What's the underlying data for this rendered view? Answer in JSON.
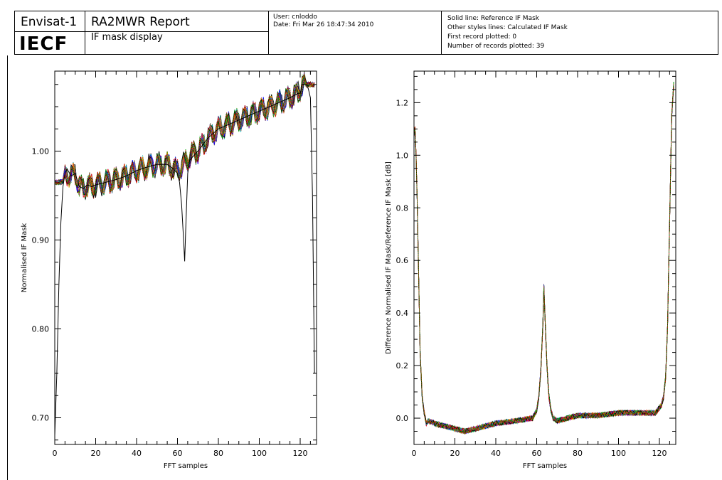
{
  "header": {
    "mission": "Envisat-1",
    "facility": "IECF",
    "report_title": "RA2MWR Report",
    "report_subtitle": "IF mask display",
    "user_line": "User: cnloddo",
    "date_line": "Date: Fri Mar 26 18:47:34 2010",
    "legend_lines": [
      "Solid line: Reference IF Mask",
      "Other styles lines: Calculated IF Mask",
      "First record plotted: 0",
      "Number of records plotted: 39"
    ]
  },
  "chart_data": [
    {
      "type": "line",
      "xlabel": "FFT samples",
      "ylabel": "Normalised IF Mask",
      "xlim": [
        0,
        128
      ],
      "ylim": [
        0.67,
        1.09
      ],
      "xticks": [
        0,
        20,
        40,
        60,
        80,
        100,
        120
      ],
      "yticks": [
        0.7,
        0.8,
        0.9,
        1.0
      ],
      "ytick_labels": [
        "0.70",
        "0.80",
        "0.90",
        "1.00"
      ],
      "reference_series": {
        "x": [
          0,
          1,
          2,
          3,
          4,
          5,
          6,
          8,
          10,
          12,
          14,
          16,
          18,
          20,
          25,
          30,
          35,
          40,
          45,
          50,
          55,
          58,
          60,
          61,
          62,
          63,
          63.5,
          64,
          65,
          66,
          68,
          70,
          75,
          80,
          85,
          90,
          95,
          100,
          105,
          110,
          115,
          119,
          120,
          121,
          122,
          123,
          124,
          125,
          126,
          127
        ],
        "y": [
          0.68,
          0.75,
          0.85,
          0.92,
          0.96,
          0.975,
          0.98,
          0.972,
          0.975,
          0.96,
          0.958,
          0.962,
          0.96,
          0.962,
          0.965,
          0.968,
          0.972,
          0.978,
          0.982,
          0.985,
          0.985,
          0.98,
          0.975,
          0.965,
          0.94,
          0.9,
          0.876,
          0.91,
          0.975,
          0.99,
          0.995,
          1.0,
          1.015,
          1.025,
          1.03,
          1.035,
          1.04,
          1.045,
          1.05,
          1.055,
          1.06,
          1.065,
          1.065,
          1.075,
          1.075,
          1.075,
          1.07,
          1.06,
          0.95,
          0.75
        ]
      },
      "calculated_series": {
        "count": 39,
        "x_start": 0,
        "x_end": 127,
        "x_step": 1,
        "y_base": [
          0.965,
          0.965,
          0.965,
          0.965,
          0.966,
          0.97,
          0.975,
          0.972,
          0.975,
          0.96,
          0.958,
          0.962,
          0.96,
          0.962,
          0.965,
          0.968,
          0.972,
          0.978,
          0.982,
          0.985,
          0.985,
          0.98,
          0.978,
          0.985,
          0.99,
          0.995,
          1.0,
          1.015,
          1.025,
          1.03,
          1.035,
          1.04,
          1.045,
          1.05,
          1.055,
          1.06,
          1.065,
          1.075,
          1.075
        ],
        "y_base_x": [
          0,
          1,
          2,
          3,
          4,
          5,
          6,
          8,
          10,
          12,
          14,
          16,
          18,
          20,
          25,
          30,
          35,
          40,
          45,
          50,
          55,
          58,
          60,
          63,
          65,
          66,
          70,
          75,
          80,
          85,
          90,
          95,
          100,
          105,
          110,
          115,
          119,
          121,
          127
        ],
        "ripple_amplitude": 0.012,
        "ripple_period": 4.2,
        "spread": 0.006
      }
    },
    {
      "type": "line",
      "xlabel": "FFT samples",
      "ylabel": "Difference Normalised IF Mask/Reference IF Mask [dB]",
      "xlim": [
        0,
        128
      ],
      "ylim": [
        -0.1,
        1.32
      ],
      "xticks": [
        0,
        20,
        40,
        60,
        80,
        100,
        120
      ],
      "yticks": [
        0.0,
        0.2,
        0.4,
        0.6,
        0.8,
        1.0,
        1.2
      ],
      "ytick_labels": [
        "0.0",
        "0.2",
        "0.4",
        "0.6",
        "0.8",
        "1.0",
        "1.2"
      ],
      "calculated_series": {
        "count": 39,
        "x": [
          0,
          0.5,
          1,
          1.5,
          2,
          3,
          4,
          5,
          6,
          7,
          10,
          15,
          20,
          25,
          30,
          40,
          50,
          58,
          60,
          61,
          62,
          63,
          63.5,
          64,
          65,
          66,
          67,
          68,
          70,
          80,
          90,
          100,
          110,
          115,
          118,
          119,
          120,
          121,
          122,
          123,
          124,
          125,
          126,
          127
        ],
        "y": [
          1.08,
          1.1,
          1.0,
          0.85,
          0.65,
          0.25,
          0.08,
          0.02,
          -0.02,
          -0.01,
          -0.02,
          -0.03,
          -0.04,
          -0.05,
          -0.04,
          -0.02,
          -0.01,
          0.0,
          0.03,
          0.08,
          0.18,
          0.35,
          0.5,
          0.4,
          0.2,
          0.08,
          0.03,
          0.0,
          -0.01,
          0.01,
          0.01,
          0.02,
          0.02,
          0.02,
          0.02,
          0.03,
          0.04,
          0.05,
          0.08,
          0.15,
          0.35,
          0.75,
          1.15,
          1.27
        ],
        "noise": 0.02
      }
    }
  ]
}
